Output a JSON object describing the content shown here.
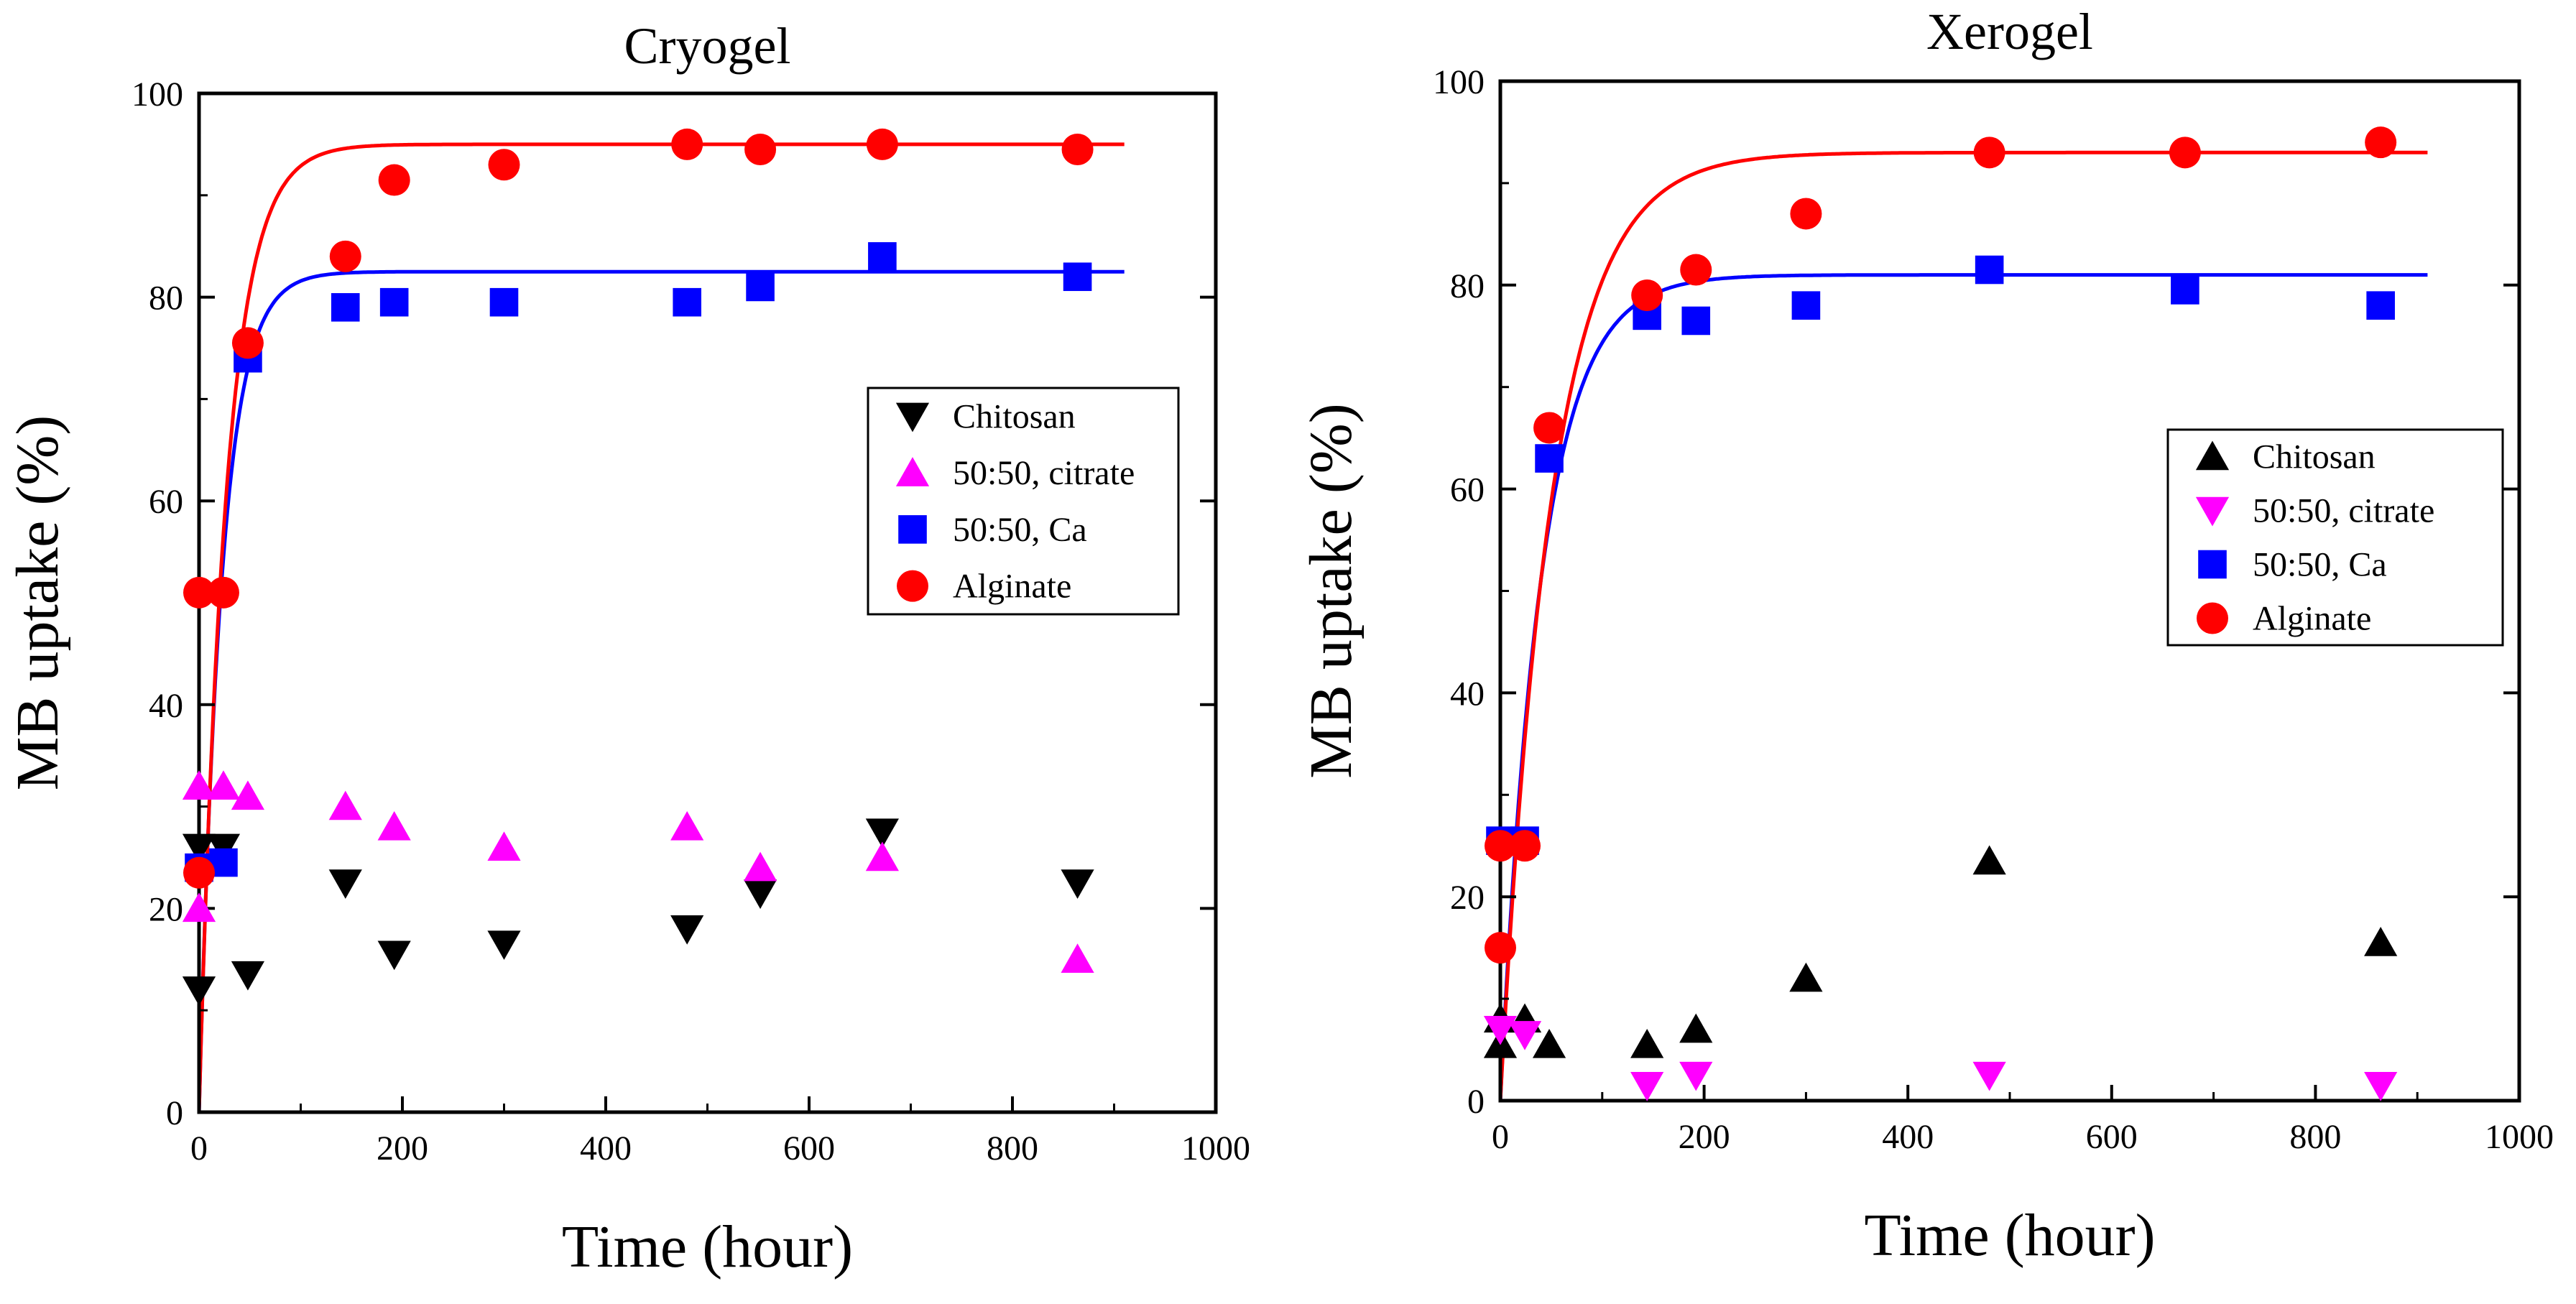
{
  "chart_data": [
    {
      "type": "scatter",
      "title": "Cryogel",
      "xlabel": "Time (hour)",
      "ylabel": "MB uptake (%)",
      "xlim": [
        0,
        1000
      ],
      "ylim": [
        0,
        100
      ],
      "xticks": [
        "0",
        "200",
        "400",
        "600",
        "800",
        "1000"
      ],
      "yticks": [
        "0",
        "20",
        "40",
        "60",
        "80",
        "100"
      ],
      "legend_position": "right-middle",
      "series": [
        {
          "name": "Chitosan",
          "marker": "triangle-down",
          "color": "#000000",
          "x": [
            0,
            0,
            24,
            48,
            144,
            192,
            300,
            480,
            552,
            672,
            864
          ],
          "y": [
            12,
            26,
            26,
            13.5,
            22.5,
            15.5,
            16.5,
            18,
            21.5,
            27.5,
            22.5
          ]
        },
        {
          "name": "50:50, citrate",
          "marker": "triangle-up",
          "color": "#ff00ff",
          "x": [
            0,
            0,
            24,
            48,
            144,
            192,
            300,
            480,
            552,
            672,
            864
          ],
          "y": [
            20,
            32,
            32,
            31,
            30,
            28,
            26,
            28,
            24,
            25,
            15
          ]
        },
        {
          "name": "50:50, Ca",
          "marker": "square",
          "color": "#0000ff",
          "x": [
            0,
            24,
            48,
            144,
            192,
            300,
            480,
            552,
            672,
            864
          ],
          "y": [
            24,
            24.5,
            74,
            79,
            79.5,
            79.5,
            79.5,
            81,
            84,
            82
          ],
          "fit": {
            "plateau": 82.5,
            "k": 0.045
          }
        },
        {
          "name": "Alginate",
          "marker": "circle",
          "color": "#ff0000",
          "x": [
            0,
            0,
            24,
            48,
            144,
            192,
            300,
            480,
            552,
            672,
            864
          ],
          "y": [
            23.5,
            51,
            51,
            75.5,
            84,
            91.5,
            93,
            95,
            94.5,
            95,
            94.5
          ],
          "fit": {
            "plateau": 95,
            "k": 0.038
          }
        }
      ]
    },
    {
      "type": "scatter",
      "title": "Xerogel",
      "xlabel": "Time (hour)",
      "ylabel": "MB uptake (%)",
      "xlim": [
        0,
        1000
      ],
      "ylim": [
        0,
        100
      ],
      "xticks": [
        "0",
        "200",
        "400",
        "600",
        "800",
        "1000"
      ],
      "yticks": [
        "0",
        "20",
        "40",
        "60",
        "80",
        "100"
      ],
      "legend_position": "right-middle",
      "series": [
        {
          "name": "Chitosan",
          "marker": "triangle-up",
          "color": "#000000",
          "x": [
            0,
            0,
            24,
            48,
            144,
            192,
            300,
            480,
            864
          ],
          "y": [
            5.5,
            8,
            8,
            5.5,
            5.5,
            7,
            12,
            23.5,
            15.5
          ]
        },
        {
          "name": "50:50, citrate",
          "marker": "triangle-down",
          "color": "#ff00ff",
          "x": [
            0,
            24,
            144,
            192,
            480,
            864
          ],
          "y": [
            7,
            6.5,
            1.5,
            2.5,
            2.5,
            1.5
          ]
        },
        {
          "name": "50:50, Ca",
          "marker": "square",
          "color": "#0000ff",
          "x": [
            0,
            24,
            48,
            144,
            192,
            300,
            480,
            672,
            864
          ],
          "y": [
            25.5,
            25.5,
            63,
            77,
            76.5,
            78,
            81.5,
            79.5,
            78
          ],
          "fit": {
            "plateau": 81,
            "k": 0.025
          }
        },
        {
          "name": "Alginate",
          "marker": "circle",
          "color": "#ff0000",
          "x": [
            0,
            0,
            24,
            48,
            144,
            192,
            300,
            480,
            672,
            864
          ],
          "y": [
            15,
            25,
            25,
            66,
            79,
            81.5,
            87,
            93,
            93,
            94
          ],
          "fit": {
            "plateau": 93,
            "k": 0.02
          }
        }
      ]
    }
  ]
}
